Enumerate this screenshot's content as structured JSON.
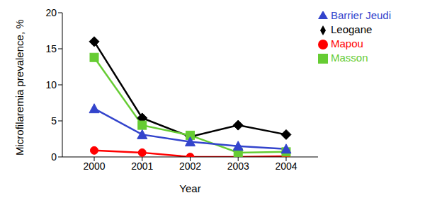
{
  "chart_data": {
    "type": "line",
    "x_label": "Year",
    "y_label": "Microfilaremia prevalence, %",
    "categories": [
      "2000",
      "2001",
      "2002",
      "2003",
      "2004"
    ],
    "series": [
      {
        "name": "Leogane",
        "color": "#000000",
        "marker": "diamond",
        "values": [
          16.0,
          5.4,
          2.8,
          4.4,
          3.1
        ]
      },
      {
        "name": "Mapou",
        "color": "#ff0000",
        "marker": "circle",
        "values": [
          0.9,
          0.6,
          0.0,
          0.0,
          0.1
        ]
      },
      {
        "name": "Masson",
        "color": "#66cc33",
        "marker": "square",
        "values": [
          13.8,
          4.4,
          3.0,
          0.6,
          0.7
        ]
      },
      {
        "name": "Barrier Jeudi",
        "color": "#3344cc",
        "marker": "triangle",
        "values": [
          6.7,
          3.1,
          2.1,
          1.5,
          1.1
        ]
      }
    ],
    "ylim": [
      0,
      20
    ],
    "yticks": [
      0,
      5,
      10,
      15,
      20
    ],
    "grid": false,
    "legend": "upper right"
  }
}
